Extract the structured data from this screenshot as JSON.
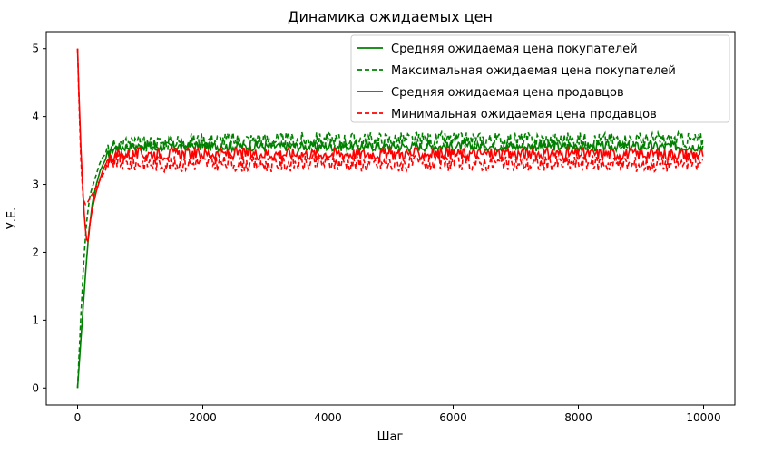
{
  "chart_data": {
    "type": "line",
    "title": "Динамика ожидаемых цен",
    "xlabel": "Шаг",
    "ylabel": "У.Е.",
    "xlim": [
      -500,
      10500
    ],
    "ylim": [
      -0.25,
      5.25
    ],
    "xticks": [
      0,
      2000,
      4000,
      6000,
      8000,
      10000
    ],
    "yticks": [
      0,
      1,
      2,
      3,
      4,
      5
    ],
    "legend_position": "top-right",
    "grid": false,
    "series": [
      {
        "name": "Средняя ожидаемая цена покупателей",
        "color": "#008000",
        "style": "solid",
        "x": [
          0,
          60,
          120,
          180,
          240,
          300,
          360,
          420,
          480,
          540,
          600,
          800,
          1000,
          1500,
          2000,
          3000,
          4000,
          5000,
          6000,
          7000,
          8000,
          9000,
          10000
        ],
        "y": [
          0.0,
          0.8,
          1.6,
          2.3,
          2.75,
          3.0,
          3.2,
          3.32,
          3.42,
          3.5,
          3.54,
          3.56,
          3.56,
          3.56,
          3.56,
          3.56,
          3.56,
          3.56,
          3.56,
          3.56,
          3.56,
          3.56,
          3.56
        ]
      },
      {
        "name": "Максимальная ожидаемая цена покупателей",
        "color": "#008000",
        "style": "dashed",
        "x": [
          0,
          50,
          100,
          150,
          200,
          250,
          300,
          350,
          400,
          450,
          500,
          550,
          600,
          800,
          1000,
          1500,
          2000,
          3000,
          4000,
          5000,
          6000,
          7000,
          8000,
          9000,
          10000
        ],
        "y": [
          0.0,
          1.0,
          1.9,
          2.5,
          2.85,
          3.0,
          3.15,
          3.3,
          3.4,
          3.45,
          3.5,
          3.55,
          3.6,
          3.6,
          3.6,
          3.62,
          3.65,
          3.65,
          3.65,
          3.65,
          3.65,
          3.65,
          3.65,
          3.65,
          3.65
        ]
      },
      {
        "name": "Средняя ожидаемая цена продавцов",
        "color": "#ff0000",
        "style": "solid",
        "x": [
          0,
          20,
          50,
          80,
          110,
          140,
          170,
          200,
          250,
          300,
          350,
          400,
          450,
          500,
          550,
          600,
          800,
          1000,
          1500,
          2000,
          3000,
          4000,
          5000,
          6000,
          7000,
          8000,
          9000,
          10000
        ],
        "y": [
          5.0,
          4.4,
          3.6,
          3.0,
          2.5,
          2.2,
          2.15,
          2.45,
          2.7,
          2.9,
          3.05,
          3.2,
          3.3,
          3.36,
          3.4,
          3.42,
          3.44,
          3.45,
          3.45,
          3.45,
          3.45,
          3.45,
          3.45,
          3.45,
          3.45,
          3.45,
          3.45,
          3.45
        ]
      },
      {
        "name": "Минимальная ожидаемая цена продавцов",
        "color": "#ff0000",
        "style": "dashed",
        "x": [
          0,
          30,
          60,
          90,
          120,
          150,
          200,
          260,
          320,
          380,
          440,
          500,
          600,
          800,
          1000,
          1500,
          2000,
          3000,
          4000,
          5000,
          6000,
          7000,
          8000,
          9000,
          10000
        ],
        "y": [
          5.0,
          4.0,
          3.2,
          2.8,
          2.7,
          2.72,
          2.8,
          2.9,
          3.0,
          3.1,
          3.2,
          3.3,
          3.35,
          3.3,
          3.32,
          3.3,
          3.32,
          3.3,
          3.32,
          3.3,
          3.32,
          3.3,
          3.32,
          3.3,
          3.32
        ]
      }
    ]
  }
}
